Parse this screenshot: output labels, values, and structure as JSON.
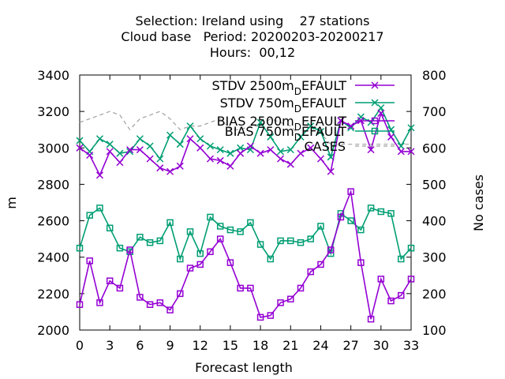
{
  "chart_data": {
    "type": "line",
    "title_lines": [
      "Selection: Ireland using    27 stations",
      "Cloud base   Period: 20200203-20200217",
      "Hours:  00,12"
    ],
    "xlabel": "Forecast length",
    "ylabel": "m",
    "y2label": "No cases",
    "xlim": [
      0,
      33
    ],
    "ylim": [
      2000,
      3400
    ],
    "y2lim": [
      100,
      800
    ],
    "x_ticks": [
      "0",
      "3",
      "6",
      "9",
      "12",
      "15",
      "18",
      "21",
      "24",
      "27",
      "30",
      "33"
    ],
    "y_ticks": [
      "2000",
      "2200",
      "2400",
      "2600",
      "2800",
      "3000",
      "3200",
      "3400"
    ],
    "y2_ticks": [
      "100",
      "200",
      "300",
      "400",
      "500",
      "600",
      "700",
      "800"
    ],
    "legend_position": "top-right",
    "x": [
      0,
      1,
      2,
      3,
      4,
      5,
      6,
      7,
      8,
      9,
      10,
      11,
      12,
      13,
      14,
      15,
      16,
      17,
      18,
      19,
      20,
      21,
      22,
      23,
      24,
      25,
      26,
      27,
      28,
      29,
      30,
      31,
      32,
      33
    ],
    "series": [
      {
        "name": "STDV 2500m_DEFAULT",
        "label_parts": [
          "STDV 2500m",
          "D",
          "EFAULT"
        ],
        "color": "#9400d3",
        "marker": "x",
        "axis": "y1",
        "values": [
          3000,
          2960,
          2850,
          2980,
          2920,
          2990,
          2990,
          2940,
          2890,
          2870,
          2900,
          3050,
          3000,
          2940,
          2930,
          2900,
          2970,
          3010,
          2970,
          2990,
          2940,
          2910,
          2970,
          3000,
          2940,
          2870,
          3150,
          3120,
          3150,
          2990,
          3190,
          3060,
          2980,
          2980
        ]
      },
      {
        "name": "STDV 750m_DEFAULT",
        "label_parts": [
          "STDV 750m",
          "D",
          "EFAULT"
        ],
        "color": "#009e73",
        "marker": "x",
        "axis": "y1",
        "values": [
          3040,
          2980,
          3050,
          3020,
          2970,
          2980,
          3050,
          3010,
          2940,
          3070,
          3020,
          3120,
          3050,
          3010,
          2990,
          2970,
          3000,
          2990,
          3140,
          3060,
          2980,
          2990,
          3060,
          3120,
          3090,
          2950,
          3150,
          3110,
          3170,
          3140,
          3220,
          3100,
          3010,
          3110
        ]
      },
      {
        "name": "BIAS 2500m_DEFAULT",
        "label_parts": [
          "BIAS 2500m",
          "D",
          "EFAULT"
        ],
        "color": "#9400d3",
        "marker": "square",
        "axis": "y1",
        "values": [
          2140,
          2380,
          2150,
          2270,
          2230,
          2440,
          2180,
          2140,
          2150,
          2110,
          2200,
          2340,
          2360,
          2430,
          2500,
          2370,
          2230,
          2230,
          2070,
          2080,
          2150,
          2170,
          2230,
          2320,
          2360,
          2440,
          2620,
          2760,
          2370,
          2060,
          2280,
          2160,
          2190,
          2280
        ]
      },
      {
        "name": "BIAS 750m_DEFAULT",
        "label_parts": [
          "BIAS 750m",
          "D",
          "EFAULT"
        ],
        "color": "#009e73",
        "marker": "square",
        "axis": "y1",
        "values": [
          2450,
          2630,
          2670,
          2560,
          2450,
          2430,
          2510,
          2480,
          2490,
          2590,
          2390,
          2540,
          2420,
          2620,
          2570,
          2550,
          2540,
          2590,
          2470,
          2390,
          2490,
          2490,
          2480,
          2500,
          2570,
          2420,
          2640,
          2600,
          2550,
          2670,
          2650,
          2640,
          2390,
          2450
        ]
      },
      {
        "name": "CASES",
        "label_parts": [
          "CASES"
        ],
        "color": "#a0a0a0",
        "marker": "none",
        "dash": true,
        "axis": "y2",
        "values": [
          670,
          680,
          690,
          700,
          690,
          650,
          680,
          690,
          700,
          680,
          650,
          660,
          660,
          670,
          680,
          650,
          650,
          660,
          660,
          680,
          670,
          660,
          630,
          660,
          640,
          610,
          610,
          610,
          610,
          610,
          610,
          610,
          610,
          610
        ]
      }
    ]
  }
}
